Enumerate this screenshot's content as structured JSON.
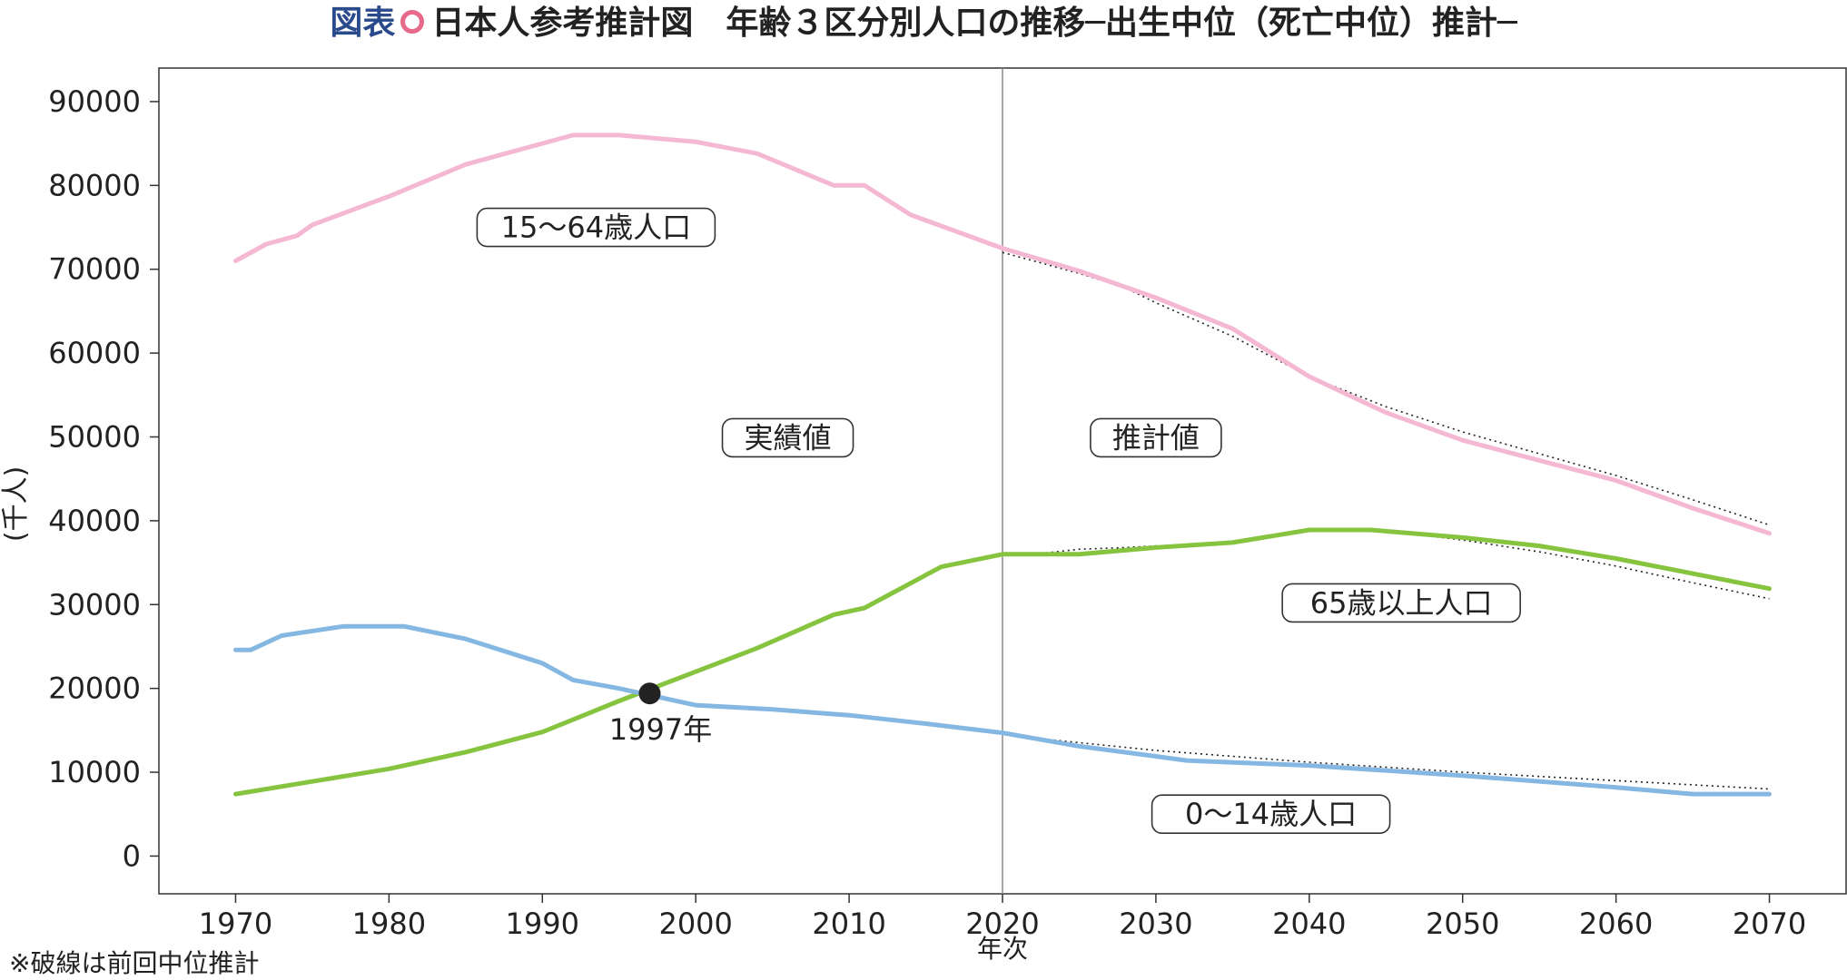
{
  "title": {
    "prefix": "図表",
    "main": "日本人参考推計図　年齢３区分別人口の推移─出生中位（死亡中位）推計─"
  },
  "footnote": "※破線は前回中位推計",
  "colors": {
    "working_age": "#f5b8d2",
    "elderly": "#86c440",
    "children": "#84b7e2",
    "previous_projection": "#222222",
    "divider": "#8a8a8a",
    "marker": "#222222"
  },
  "chart_data": {
    "type": "line",
    "xlabel": "年次",
    "ylabel": "(千人)",
    "xlim": [
      1965,
      2075
    ],
    "ylim": [
      -4500,
      94000
    ],
    "x_ticks": [
      1970,
      1980,
      1990,
      2000,
      2010,
      2020,
      2030,
      2040,
      2050,
      2060,
      2070
    ],
    "y_ticks": [
      0,
      10000,
      20000,
      30000,
      40000,
      50000,
      60000,
      70000,
      80000,
      90000
    ],
    "grid": false,
    "divider_year": 2020,
    "series": [
      {
        "name": "15～64歳人口",
        "color_key": "working_age",
        "x": [
          1970,
          1972,
          1974,
          1975,
          1980,
          1985,
          1990,
          1992,
          1995,
          2000,
          2004,
          2009,
          2011,
          2014,
          2020,
          2025,
          2030,
          2035,
          2040,
          2045,
          2050,
          2055,
          2060,
          2065,
          2070
        ],
        "values": [
          71000,
          73000,
          74000,
          75300,
          78700,
          82500,
          85000,
          86000,
          86000,
          85200,
          83800,
          80000,
          80000,
          76500,
          72500,
          69800,
          66600,
          62900,
          57200,
          52900,
          49600,
          47200,
          44800,
          41500,
          38500
        ]
      },
      {
        "name": "65歳以上人口",
        "color_key": "elderly",
        "x": [
          1970,
          1975,
          1980,
          1985,
          1990,
          1995,
          2000,
          2004,
          2009,
          2011,
          2016,
          2020,
          2025,
          2030,
          2035,
          2040,
          2044,
          2050,
          2055,
          2060,
          2065,
          2070
        ],
        "values": [
          7400,
          8900,
          10400,
          12400,
          14800,
          18500,
          22000,
          24800,
          28800,
          29600,
          34500,
          36000,
          36000,
          36800,
          37400,
          38900,
          38900,
          38000,
          37000,
          35500,
          33700,
          31900
        ]
      },
      {
        "name": "0～14歳人口",
        "color_key": "children",
        "x": [
          1970,
          1971,
          1973,
          1977,
          1981,
          1985,
          1990,
          1992,
          1995,
          2000,
          2005,
          2010,
          2015,
          2020,
          2025,
          2030,
          2032,
          2040,
          2050,
          2060,
          2065,
          2070
        ],
        "values": [
          24600,
          24600,
          26300,
          27400,
          27400,
          25900,
          23000,
          21000,
          20000,
          18000,
          17500,
          16800,
          15800,
          14700,
          13100,
          11900,
          11400,
          10800,
          9600,
          8200,
          7400,
          7400
        ]
      }
    ],
    "previous_projection": [
      {
        "series": "15～64歳人口",
        "x": [
          2020,
          2025,
          2028,
          2030,
          2035,
          2040,
          2045,
          2050,
          2055,
          2060,
          2065,
          2070
        ],
        "values": [
          72000,
          69500,
          67800,
          66000,
          62000,
          57200,
          53600,
          50600,
          48000,
          45400,
          42500,
          39500
        ]
      },
      {
        "series": "65歳以上人口",
        "x": [
          2020,
          2022,
          2025,
          2028,
          2030,
          2035,
          2040,
          2045,
          2050,
          2055,
          2060,
          2065,
          2070
        ],
        "values": [
          35900,
          36000,
          36600,
          36800,
          37000,
          37400,
          38800,
          38800,
          37700,
          36300,
          34600,
          32600,
          30700
        ]
      },
      {
        "series": "0～14歳人口",
        "x": [
          2023,
          2030,
          2040,
          2050,
          2060,
          2070
        ],
        "values": [
          13900,
          12600,
          11200,
          10000,
          9000,
          8000
        ]
      }
    ],
    "labels": {
      "working_age": "15～64歳人口",
      "elderly": "65歳以上人口",
      "children": "0～14歳人口",
      "actual": "実績値",
      "projected": "推計値"
    },
    "crossover": {
      "x": 1997,
      "y": 19400,
      "label": "1997年"
    }
  }
}
